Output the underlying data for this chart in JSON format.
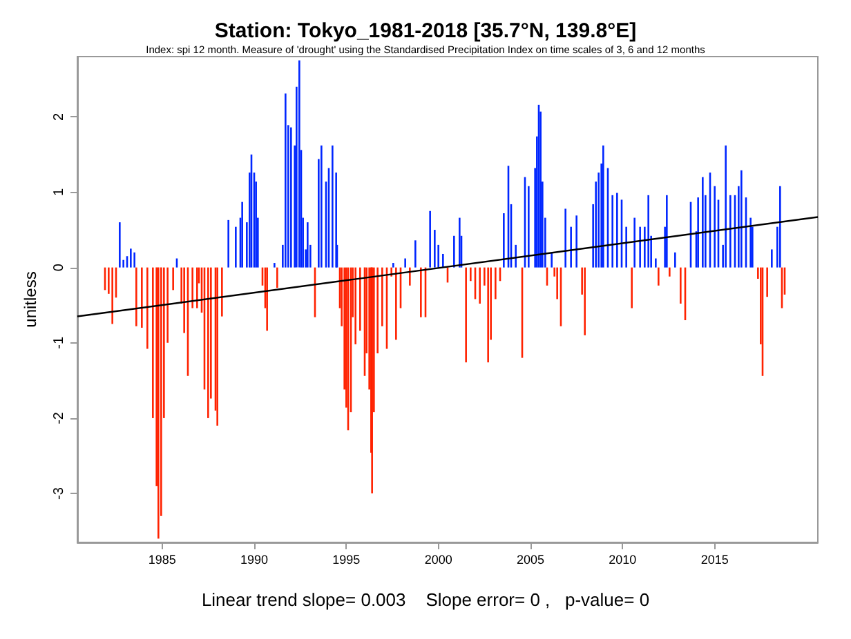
{
  "chart_data": {
    "type": "bar",
    "title": "Station: Tokyo_1981-2018 [35.7°N, 139.8°E]",
    "subtitle": "Index: spi 12 month. Measure of 'drought' using the Standardised Precipitation Index on time scales of 3, 6 and 12 months",
    "ylabel": "unitless",
    "annotations": [
      "Linear trend slope= 0.003    Slope error= 0 ,   p-value= 0"
    ],
    "xlim": [
      1980.4,
      2020.6
    ],
    "xticks": [
      1985,
      1990,
      1995,
      2000,
      2005,
      2010,
      2015
    ],
    "ylim": [
      -3.65,
      2.8
    ],
    "yticks": [
      -3,
      -2,
      -1,
      0,
      1,
      2
    ],
    "grid": false,
    "legend": false,
    "series": [
      {
        "color": "#0026ff",
        "x": [
          1982.7,
          1982.9,
          1983.1,
          1983.3,
          1983.5,
          1985.8,
          1988.6,
          1989.0,
          1989.25,
          1989.35,
          1989.6,
          1989.75,
          1989.85,
          1990.0,
          1990.1,
          1990.2,
          1991.1,
          1991.55,
          1991.7,
          1991.85,
          1992.0,
          1992.2,
          1992.3,
          1992.45,
          1992.55,
          1992.65,
          1992.8,
          1992.9,
          1993.05,
          1993.5,
          1993.65,
          1993.9,
          1994.05,
          1994.25,
          1994.45,
          1994.5,
          1997.55,
          1998.2,
          1998.75,
          1999.55,
          1999.8,
          2000.0,
          2000.25,
          2000.85,
          2001.15,
          2001.25,
          2003.55,
          2003.8,
          2003.95,
          2004.2,
          2004.7,
          2004.9,
          2005.25,
          2005.35,
          2005.45,
          2005.55,
          2005.65,
          2005.8,
          2006.15,
          2006.9,
          2007.2,
          2007.5,
          2008.4,
          2008.55,
          2008.7,
          2008.85,
          2008.95,
          2009.2,
          2009.45,
          2009.7,
          2009.95,
          2010.2,
          2010.65,
          2010.95,
          2011.2,
          2011.4,
          2011.55,
          2011.8,
          2012.3,
          2012.4,
          2012.85,
          2013.7,
          2014.0,
          2014.1,
          2014.35,
          2014.5,
          2014.75,
          2015.0,
          2015.2,
          2015.45,
          2015.6,
          2015.85,
          2016.1,
          2016.3,
          2016.45,
          2016.7,
          2016.95,
          2017.05,
          2018.1,
          2018.4,
          2018.55
        ],
        "values": [
          0.6,
          0.1,
          0.15,
          0.25,
          0.2,
          0.12,
          0.63,
          0.54,
          0.66,
          0.87,
          0.6,
          1.26,
          1.5,
          1.26,
          1.14,
          0.66,
          0.06,
          0.3,
          2.31,
          1.89,
          1.86,
          1.62,
          2.4,
          2.75,
          1.56,
          0.66,
          0.24,
          0.6,
          0.3,
          1.44,
          1.62,
          1.14,
          1.32,
          1.62,
          1.26,
          0.3,
          0.06,
          0.12,
          0.36,
          0.75,
          0.5,
          0.3,
          0.18,
          0.42,
          0.66,
          0.42,
          0.72,
          1.35,
          0.84,
          0.3,
          1.2,
          1.08,
          1.32,
          1.74,
          2.16,
          2.07,
          1.14,
          0.66,
          0.2,
          0.78,
          0.54,
          0.69,
          0.84,
          1.14,
          1.26,
          1.38,
          1.62,
          1.32,
          0.96,
          0.99,
          0.9,
          0.54,
          0.66,
          0.54,
          0.54,
          0.96,
          0.42,
          0.12,
          0.54,
          0.96,
          0.2,
          0.87,
          0.48,
          0.93,
          1.2,
          0.96,
          1.26,
          1.08,
          0.9,
          0.3,
          1.62,
          0.96,
          0.96,
          1.08,
          1.29,
          0.93,
          0.66,
          0.54,
          0.24,
          0.54,
          1.08
        ]
      },
      {
        "color": "#ff2200",
        "x": [
          1981.9,
          1982.1,
          1982.3,
          1982.5,
          1983.6,
          1983.9,
          1984.2,
          1984.5,
          1984.7,
          1984.8,
          1984.95,
          1985.1,
          1985.3,
          1985.6,
          1986.05,
          1986.2,
          1986.4,
          1986.65,
          1986.9,
          1987.0,
          1987.15,
          1987.3,
          1987.5,
          1987.65,
          1987.9,
          1988.0,
          1988.25,
          1990.45,
          1990.6,
          1990.7,
          1991.25,
          1993.3,
          1994.65,
          1994.75,
          1994.9,
          1995.0,
          1995.1,
          1995.25,
          1995.35,
          1995.5,
          1995.75,
          1996.0,
          1996.1,
          1996.25,
          1996.35,
          1996.4,
          1996.5,
          1996.7,
          1996.95,
          1997.2,
          1997.45,
          1997.7,
          1997.95,
          1998.45,
          1999.05,
          1999.3,
          2000.5,
          2001.5,
          2001.75,
          2002.0,
          2002.25,
          2002.5,
          2002.7,
          2002.85,
          2003.1,
          2003.35,
          2004.55,
          2005.9,
          2006.3,
          2006.45,
          2006.65,
          2007.8,
          2007.95,
          2010.5,
          2011.95,
          2012.55,
          2013.15,
          2013.4,
          2017.35,
          2017.5,
          2017.6,
          2017.85,
          2018.65,
          2018.8
        ],
        "values": [
          -0.3,
          -0.35,
          -0.75,
          -0.4,
          -0.78,
          -0.8,
          -1.08,
          -2.0,
          -2.9,
          -3.6,
          -3.3,
          -2.0,
          -1.0,
          -0.3,
          -0.48,
          -0.87,
          -1.44,
          -0.54,
          -0.54,
          -0.21,
          -0.6,
          -1.62,
          -2.0,
          -1.74,
          -1.9,
          -2.1,
          -0.65,
          -0.24,
          -0.54,
          -0.84,
          -0.27,
          -0.66,
          -0.54,
          -0.78,
          -1.62,
          -1.86,
          -2.16,
          -1.92,
          -0.66,
          -1.02,
          -0.84,
          -1.44,
          -1.14,
          -1.62,
          -2.46,
          -3.0,
          -1.92,
          -1.14,
          -0.78,
          -1.08,
          -0.12,
          -0.96,
          -0.54,
          -0.24,
          -0.66,
          -0.66,
          -0.2,
          -1.26,
          -0.18,
          -0.42,
          -0.48,
          -0.24,
          -1.26,
          -0.96,
          -0.42,
          -0.18,
          -1.2,
          -0.24,
          -0.12,
          -0.42,
          -0.78,
          -0.36,
          -0.9,
          -0.54,
          -0.24,
          -0.12,
          -0.48,
          -0.7,
          -0.15,
          -1.02,
          -1.44,
          -0.39,
          -0.54,
          -0.36
        ]
      },
      {
        "type": "line",
        "color": "#000000",
        "x": [
          1980.4,
          2020.6
        ],
        "values": [
          -0.65,
          0.67
        ]
      }
    ]
  }
}
